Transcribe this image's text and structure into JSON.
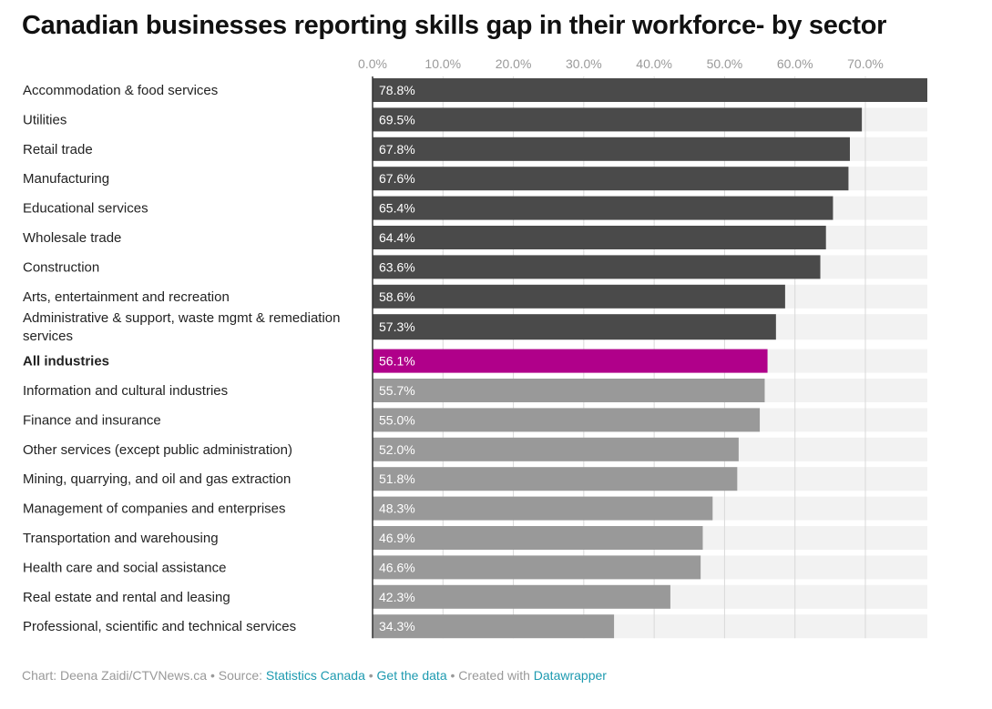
{
  "title": "Canadian businesses reporting skills gap in their workforce- by sector",
  "footer": {
    "chart_prefix": "Chart: Deena Zaidi/CTVNews.ca",
    "source_prefix": "Source:",
    "source_link": "Statistics Canada",
    "get_data": "Get the data",
    "created_with": "Created with",
    "datawrapper": "Datawrapper"
  },
  "colors": {
    "dark_bar": "#4a4a4a",
    "highlight_bar": "#b0008a",
    "light_bar": "#999999",
    "track": "#f2f2f2",
    "grid": "#d9d9d9",
    "axis": "#333333",
    "link": "#1d9ab0"
  },
  "chart_data": {
    "type": "bar",
    "orientation": "horizontal",
    "xlim": [
      0,
      78.8
    ],
    "x_ticks": [
      "0.0%",
      "10.0%",
      "20.0%",
      "30.0%",
      "40.0%",
      "50.0%",
      "60.0%",
      "70.0%"
    ],
    "x_tick_values": [
      0,
      10,
      20,
      30,
      40,
      50,
      60,
      70
    ],
    "grid": true,
    "categories": [
      "Accommodation & food services",
      "Utilities",
      "Retail trade",
      "Manufacturing",
      "Educational services",
      "Wholesale trade",
      "Construction",
      "Arts, entertainment and recreation",
      "Administrative & support, waste mgmt & remediation services",
      "All industries",
      "Information and cultural industries",
      "Finance and insurance",
      "Other services (except public administration)",
      "Mining, quarrying, and oil and gas extraction",
      "Management of companies and enterprises",
      "Transportation and warehousing",
      "Health care and social assistance",
      "Real estate and rental and leasing",
      "Professional, scientific and technical services"
    ],
    "values": [
      78.8,
      69.5,
      67.8,
      67.6,
      65.4,
      64.4,
      63.6,
      58.6,
      57.3,
      56.1,
      55.7,
      55.0,
      52.0,
      51.8,
      48.3,
      46.9,
      46.6,
      42.3,
      34.3
    ],
    "value_labels": [
      "78.8%",
      "69.5%",
      "67.8%",
      "67.6%",
      "65.4%",
      "64.4%",
      "63.6%",
      "58.6%",
      "57.3%",
      "56.1%",
      "55.7%",
      "55.0%",
      "52.0%",
      "51.8%",
      "48.3%",
      "46.9%",
      "46.6%",
      "42.3%",
      "34.3%"
    ],
    "label_lines": [
      [
        "Accommodation & food services"
      ],
      [
        "Utilities"
      ],
      [
        "Retail trade"
      ],
      [
        "Manufacturing"
      ],
      [
        "Educational services"
      ],
      [
        "Wholesale trade"
      ],
      [
        "Construction"
      ],
      [
        "Arts, entertainment and recreation"
      ],
      [
        "Administrative & support, waste mgmt & remediation",
        "services"
      ],
      [
        "All industries"
      ],
      [
        "Information and cultural industries"
      ],
      [
        "Finance and insurance"
      ],
      [
        "Other services (except public administration)"
      ],
      [
        "Mining, quarrying, and oil and gas extraction"
      ],
      [
        "Management of companies and enterprises"
      ],
      [
        "Transportation and warehousing"
      ],
      [
        "Health care and social assistance"
      ],
      [
        "Real estate and rental and leasing"
      ],
      [
        "Professional, scientific and technical services"
      ]
    ],
    "bar_style": [
      "dark",
      "dark",
      "dark",
      "dark",
      "dark",
      "dark",
      "dark",
      "dark",
      "dark",
      "highlight",
      "light",
      "light",
      "light",
      "light",
      "light",
      "light",
      "light",
      "light",
      "light"
    ],
    "bold_labels": [
      "All industries"
    ]
  }
}
